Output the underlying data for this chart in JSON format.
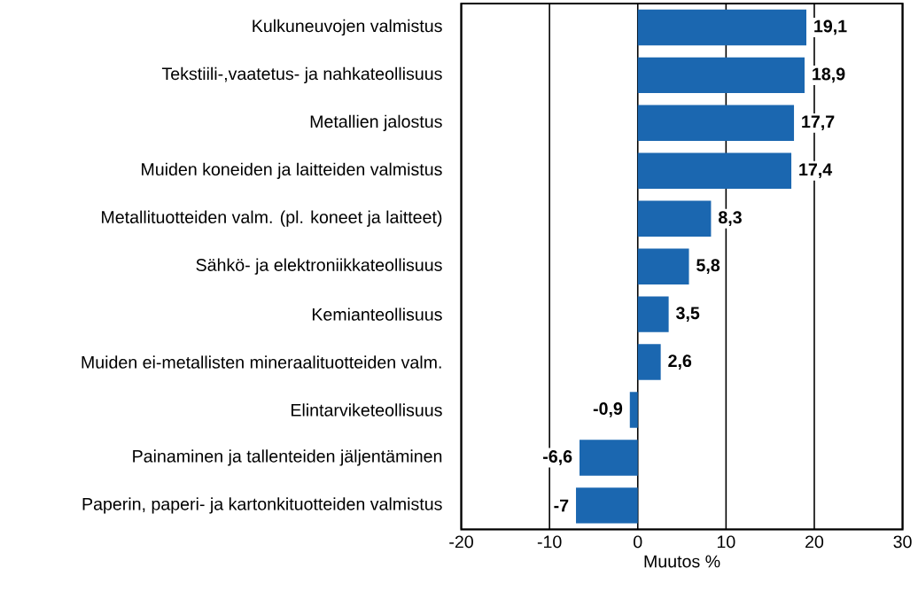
{
  "chart_data": {
    "type": "bar",
    "orientation": "horizontal",
    "xlabel": "Muutos  %",
    "categories": [
      "Kulkuneuvojen valmistus",
      "Tekstiili-,vaatetus- ja nahkateollisuus",
      "Metallien jalostus",
      "Muiden koneiden ja laitteiden valmistus",
      "Metallituotteiden valm. (pl. koneet ja laitteet)",
      "Sähkö- ja elektroniikkateollisuus",
      "Kemianteollisuus",
      "Muiden ei-metallisten mineraalituotteiden valm.",
      "Elintarviketeollisuus",
      "Painaminen ja tallenteiden jäljentäminen",
      "Paperin, paperi- ja kartonkituotteiden valmistus"
    ],
    "values": [
      19.1,
      18.9,
      17.7,
      17.4,
      8.3,
      5.8,
      3.5,
      2.6,
      -0.9,
      -6.6,
      -7
    ],
    "value_labels": [
      "19,1",
      "18,9",
      "17,7",
      "17,4",
      "8,3",
      "5,8",
      "3,5",
      "2,6",
      "-0,9",
      "-6,6",
      "-7"
    ],
    "color": "#1b67b0",
    "xlim": [
      -20,
      30
    ],
    "xticks": [
      -20,
      -10,
      0,
      10,
      20,
      30
    ],
    "grid": "x"
  }
}
